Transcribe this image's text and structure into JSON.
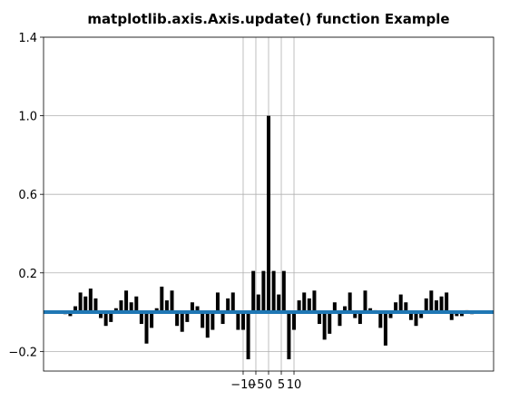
{
  "chart_data": {
    "type": "xcorr",
    "title": "matplotlib.axis.Axis.update() function Example",
    "x": [
      -80,
      -78,
      -76,
      -74,
      -72,
      -70,
      -68,
      -66,
      -64,
      -62,
      -60,
      -58,
      -56,
      -54,
      -52,
      -50,
      -48,
      -46,
      -44,
      -42,
      -40,
      -38,
      -36,
      -34,
      -32,
      -30,
      -28,
      -26,
      -24,
      -22,
      -20,
      -18,
      -16,
      -14,
      -12,
      -10,
      -8,
      -6,
      -4,
      -2,
      0,
      2,
      4,
      6,
      8,
      10,
      12,
      14,
      16,
      18,
      20,
      22,
      24,
      26,
      28,
      30,
      32,
      34,
      36,
      38,
      40,
      42,
      44,
      46,
      48,
      50,
      52,
      54,
      56,
      58,
      60,
      62,
      64,
      66,
      68,
      70,
      72,
      74,
      76,
      78,
      80
    ],
    "values": [
      -0.01,
      -0.02,
      0.03,
      0.1,
      0.08,
      0.12,
      0.07,
      -0.03,
      -0.07,
      -0.05,
      0.02,
      0.06,
      0.11,
      0.05,
      0.08,
      -0.06,
      -0.16,
      -0.08,
      0.02,
      0.13,
      0.06,
      0.11,
      -0.07,
      -0.1,
      -0.05,
      0.05,
      0.03,
      -0.08,
      -0.13,
      -0.09,
      0.1,
      -0.06,
      0.07,
      0.1,
      -0.09,
      -0.09,
      -0.24,
      0.21,
      0.09,
      0.21,
      1.0,
      0.21,
      0.09,
      0.21,
      -0.24,
      -0.09,
      0.06,
      0.1,
      0.07,
      0.11,
      -0.06,
      -0.14,
      -0.11,
      0.05,
      -0.07,
      0.03,
      0.1,
      -0.03,
      -0.06,
      0.11,
      0.02,
      0.01,
      -0.08,
      -0.17,
      -0.03,
      0.05,
      0.09,
      0.05,
      -0.04,
      -0.07,
      -0.03,
      0.07,
      0.11,
      0.06,
      0.08,
      0.1,
      -0.04,
      -0.02,
      -0.02,
      0.01,
      -0.01
    ],
    "color": "#000000",
    "axhline": 0,
    "axhline_color": "#1f77b4",
    "xlim": [
      -88.5,
      88.5
    ],
    "ylim": [
      -0.3,
      1.4
    ],
    "xticks": [
      {
        "value": -10,
        "label": "−10"
      },
      {
        "value": -5,
        "label": "−5"
      },
      0,
      5,
      10
    ],
    "yticks": [
      {
        "value": -0.2,
        "label": "−0.2"
      },
      0.2,
      0.6,
      {
        "value": 1,
        "label": "1.0"
      },
      1.4
    ],
    "grid": true
  }
}
